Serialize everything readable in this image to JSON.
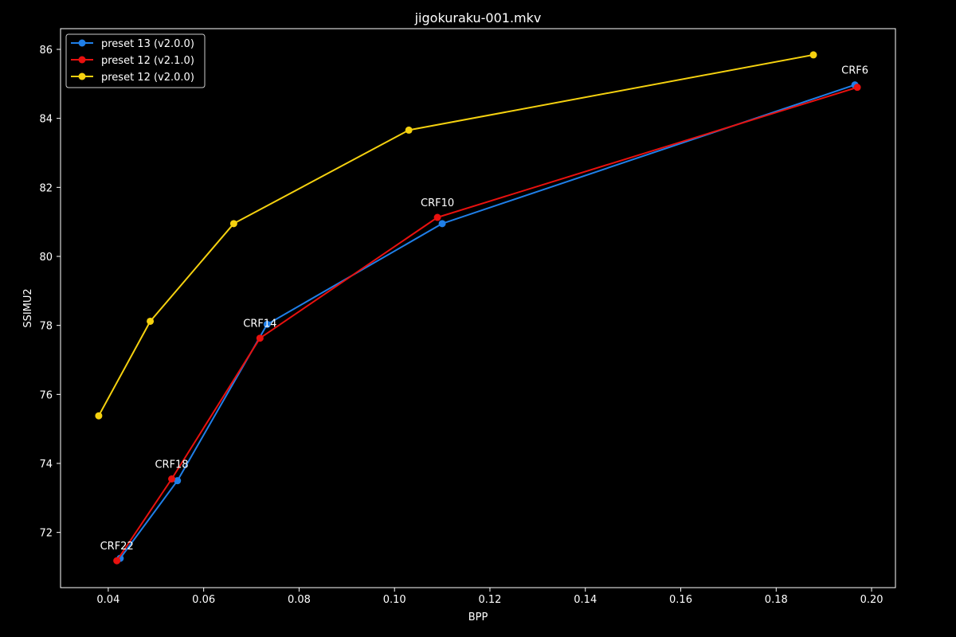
{
  "chart_data": {
    "type": "line",
    "title": "jigokuraku-001.mkv",
    "xlabel": "BPP",
    "ylabel": "SSIMU2",
    "xlim": [
      0.03,
      0.205
    ],
    "ylim": [
      70.4,
      86.6
    ],
    "xticks": [
      0.04,
      0.06,
      0.08,
      0.1,
      0.12,
      0.14,
      0.16,
      0.18,
      0.2
    ],
    "xtick_labels": [
      "0.04",
      "0.06",
      "0.08",
      "0.10",
      "0.12",
      "0.14",
      "0.16",
      "0.18",
      "0.20"
    ],
    "yticks": [
      72,
      74,
      76,
      78,
      80,
      82,
      84,
      86
    ],
    "ytick_labels": [
      "72",
      "74",
      "76",
      "78",
      "80",
      "82",
      "84",
      "86"
    ],
    "grid": false,
    "legend_position": "top-left",
    "background": "#000000",
    "series": [
      {
        "name": "preset 13 (v2.0.0)",
        "color": "#1f7fe8",
        "x": [
          0.0425,
          0.0545,
          0.0733,
          0.11,
          0.1965
        ],
        "y": [
          71.25,
          73.5,
          78.03,
          80.95,
          84.97
        ]
      },
      {
        "name": "preset 12 (v2.1.0)",
        "color": "#e8110f",
        "x": [
          0.0418,
          0.0533,
          0.0718,
          0.109,
          0.197
        ],
        "y": [
          71.18,
          73.55,
          77.63,
          81.13,
          84.9
        ]
      },
      {
        "name": "preset 12 (v2.0.0)",
        "color": "#f5d10f",
        "x": [
          0.038,
          0.0488,
          0.0663,
          0.103,
          0.1878
        ],
        "y": [
          75.38,
          78.12,
          80.95,
          83.66,
          85.84
        ]
      }
    ],
    "annotations": [
      {
        "text": "CRF22",
        "x": 0.0418,
        "y": 71.18
      },
      {
        "text": "CRF18",
        "x": 0.0533,
        "y": 73.55
      },
      {
        "text": "CRF14",
        "x": 0.0718,
        "y": 77.63
      },
      {
        "text": "CRF10",
        "x": 0.109,
        "y": 81.13
      },
      {
        "text": "CRF6",
        "x": 0.1965,
        "y": 84.97
      }
    ]
  }
}
